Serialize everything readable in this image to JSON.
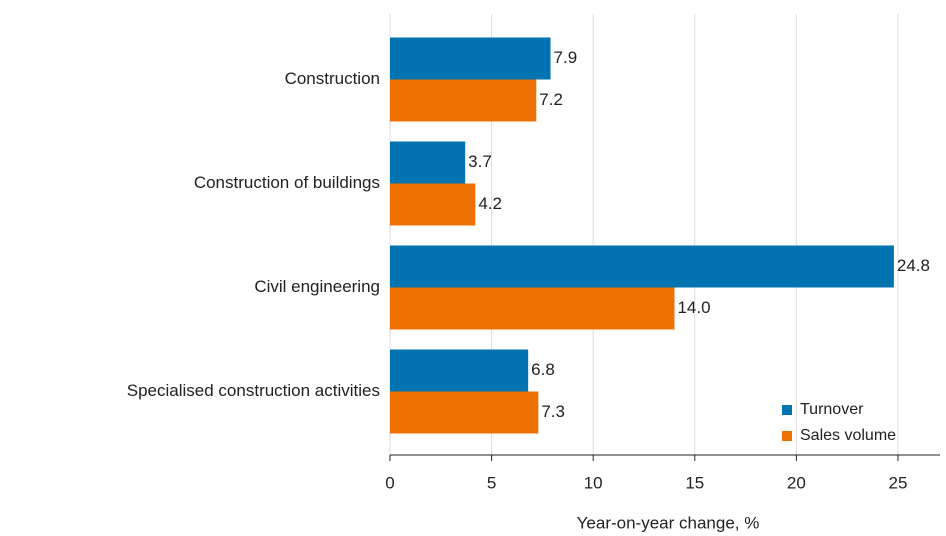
{
  "chart_data": {
    "type": "hbar",
    "x_label": "Year-on-year change, %",
    "categories": [
      "Construction",
      "Construction of buildings",
      "Civil engineering",
      "Specialised construction activities"
    ],
    "series": [
      {
        "name": "Turnover",
        "color": "#0073b0",
        "values": [
          7.9,
          3.7,
          24.8,
          6.8
        ],
        "value_labels": [
          "7.9",
          "3.7",
          "24.8",
          "6.8"
        ]
      },
      {
        "name": "Sales volume",
        "color": "#ed7000",
        "values": [
          7.2,
          4.2,
          14.0,
          7.3
        ],
        "value_labels": [
          "7.2",
          "4.2",
          "14.0",
          "7.3"
        ]
      }
    ],
    "xlim": [
      0,
      27
    ],
    "xticks": [
      0,
      5,
      10,
      15,
      20,
      25
    ],
    "grid": true,
    "legend": "lower right"
  }
}
